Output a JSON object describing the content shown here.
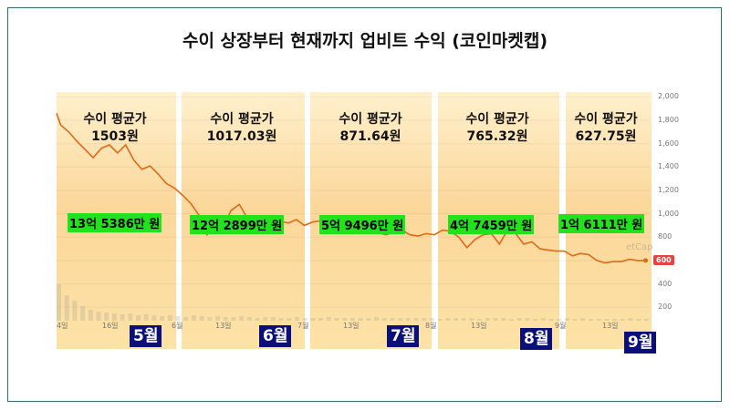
{
  "title": "수이 상장부터 현재까지 업비트 수익 (코인마켓캡)",
  "panels": [
    {
      "line1": "수이 평균가",
      "line2": "1503원",
      "profit": "13억 5386만 원",
      "month": "5월"
    },
    {
      "line1": "수이 평균가",
      "line2": "1017.03원",
      "profit": "12억 2899만 원",
      "month": "6월"
    },
    {
      "line1": "수이 평균가",
      "line2": "871.64원",
      "profit": "5억 9496만 원",
      "month": "7월"
    },
    {
      "line1": "수이 평균가",
      "line2": "765.32원",
      "profit": "4억 7459만 원",
      "month": "8월"
    },
    {
      "line1": "수이 평균가",
      "line2": "627.75원",
      "profit": "1억 6111만 원",
      "month": "9월"
    }
  ],
  "y_ticks": [
    "2,000",
    "1,800",
    "1,600",
    "1,400",
    "1,200",
    "1,000",
    "800",
    "600",
    "400",
    "200"
  ],
  "x_ticks": [
    "4일",
    "16일",
    "6월",
    "13일",
    "7월",
    "13일",
    "8월",
    "13일",
    "9월",
    "13일"
  ],
  "current_price": "600",
  "watermark": "etCap",
  "colors": {
    "line": "#e06a17",
    "panel": "#fbdc9a",
    "green": "#22e31b",
    "badge": "#0b0f7a",
    "price": "#e84142"
  },
  "chart_data": {
    "type": "line",
    "title": "수이 상장부터 현재까지 업비트 수익 (코인마켓캡)",
    "ylim": [
      100,
      2050
    ],
    "x_range": [
      0,
      146
    ],
    "series": [
      {
        "x": [
          0,
          1,
          2,
          3,
          5,
          7,
          9,
          11,
          13,
          15,
          17,
          19,
          21,
          23,
          25,
          27,
          29,
          31,
          33,
          35,
          37,
          39,
          41,
          43,
          45,
          47,
          49,
          51,
          53,
          55,
          57,
          59,
          61,
          63,
          65,
          67,
          69,
          71,
          73,
          75,
          77,
          79,
          81,
          83,
          85,
          87,
          89,
          91,
          93,
          95,
          97,
          99,
          101,
          103,
          105,
          107,
          109,
          111,
          113,
          115,
          117,
          119,
          121,
          123,
          125,
          127,
          129,
          131,
          133,
          135,
          137,
          139,
          141,
          143,
          145
        ],
        "values": [
          1860,
          1760,
          1730,
          1700,
          1620,
          1550,
          1480,
          1560,
          1590,
          1520,
          1590,
          1460,
          1380,
          1410,
          1340,
          1260,
          1220,
          1160,
          1090,
          990,
          820,
          880,
          890,
          1030,
          1080,
          960,
          930,
          910,
          980,
          940,
          920,
          950,
          900,
          930,
          940,
          970,
          880,
          930,
          870,
          850,
          860,
          840,
          820,
          840,
          860,
          820,
          810,
          830,
          820,
          860,
          850,
          800,
          710,
          780,
          820,
          830,
          740,
          860,
          830,
          740,
          760,
          700,
          690,
          680,
          680,
          640,
          660,
          650,
          600,
          580,
          590,
          590,
          610,
          600,
          600
        ]
      }
    ]
  }
}
